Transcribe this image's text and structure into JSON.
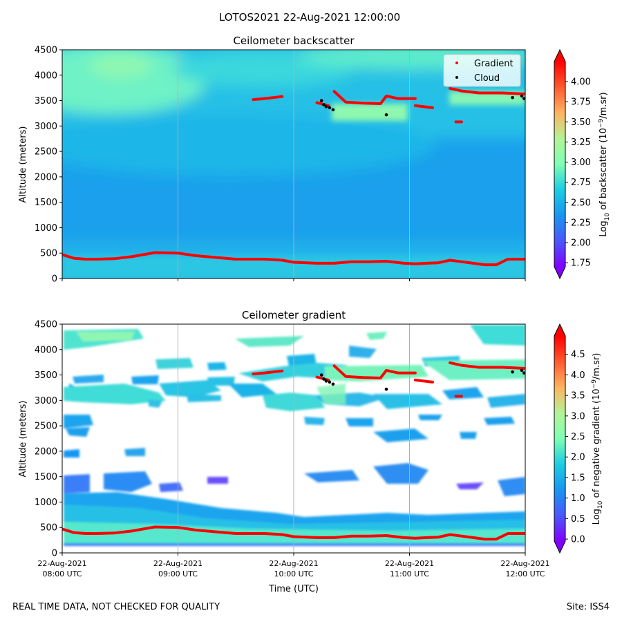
{
  "figure": {
    "suptitle": "LOTOS2021 22-Aug-2021 12:00:00",
    "footer_left": "REAL TIME DATA, NOT CHECKED FOR QUALITY",
    "footer_right": "Site: ISS4"
  },
  "chart_data": [
    {
      "type": "heatmap",
      "title": "Ceilometer backscatter",
      "xlabel": "",
      "ylabel": "Altitude (meters)",
      "xlim": [
        "22-Aug-2021 08:00 UTC",
        "22-Aug-2021 12:00 UTC"
      ],
      "ylim": [
        0,
        4500
      ],
      "yticks": [
        "0",
        "500",
        "1000",
        "1500",
        "2000",
        "2500",
        "3000",
        "3500",
        "4000",
        "4500"
      ],
      "xtick_times": [
        0,
        1,
        2,
        3,
        4
      ],
      "grid": "vertical lines at hourly ticks",
      "colormap": "rainbow",
      "colorbar": {
        "label_main": "Log",
        "label_sub": "10",
        "label_rest": " of backscatter (10",
        "label_exp": "−9",
        "label_end": "/m.sr)",
        "range": [
          1.7,
          4.25
        ],
        "ticks": [
          "1.75",
          "2.00",
          "2.25",
          "2.50",
          "2.75",
          "3.00",
          "3.25",
          "3.50",
          "3.75",
          "4.00"
        ],
        "tick_values": [
          1.75,
          2.0,
          2.25,
          2.5,
          2.75,
          3.0,
          3.25,
          3.5,
          3.75,
          4.0
        ],
        "extend": "both"
      },
      "legend": {
        "placement": "top-right",
        "entries": [
          {
            "name": "Gradient",
            "color": "#ff0000"
          },
          {
            "name": "Cloud",
            "color": "#000000"
          }
        ]
      },
      "series": [
        {
          "name": "Gradient",
          "color": "#ff0000",
          "segments": [
            {
              "x": [
                0.0,
                0.1,
                0.2,
                0.3,
                0.45,
                0.6,
                0.8,
                1.0,
                1.15,
                1.3,
                1.5,
                1.75,
                1.9,
                2.0,
                2.2,
                2.35,
                2.5,
                2.65,
                2.8,
                2.95,
                3.05,
                3.15,
                3.25,
                3.35,
                3.45,
                3.55,
                3.65,
                3.75,
                3.85,
                4.0
              ],
              "y": [
                470,
                400,
                380,
                380,
                390,
                430,
                510,
                500,
                450,
                420,
                380,
                380,
                360,
                320,
                300,
                300,
                330,
                330,
                340,
                300,
                290,
                300,
                310,
                360,
                330,
                300,
                270,
                270,
                380,
                380
              ]
            },
            {
              "x": [
                1.65,
                1.75,
                1.9
              ],
              "y": [
                3520,
                3540,
                3580
              ]
            },
            {
              "x": [
                2.2,
                2.3
              ],
              "y": [
                3460,
                3400
              ]
            },
            {
              "x": [
                2.35,
                2.45,
                2.6,
                2.75,
                2.8,
                2.9,
                3.05
              ],
              "y": [
                3680,
                3470,
                3450,
                3440,
                3590,
                3540,
                3540
              ]
            },
            {
              "x": [
                3.05,
                3.2
              ],
              "y": [
                3400,
                3360
              ]
            },
            {
              "x": [
                3.4,
                3.45
              ],
              "y": [
                3080,
                3080
              ]
            },
            {
              "x": [
                3.35,
                3.45,
                3.6,
                3.8,
                4.0
              ],
              "y": [
                3740,
                3690,
                3650,
                3650,
                3630
              ]
            }
          ]
        },
        {
          "name": "Cloud",
          "color": "#000000",
          "x": [
            2.24,
            2.26,
            2.28,
            2.31,
            2.34,
            2.8,
            3.89,
            3.97,
            3.99
          ],
          "y": [
            3500,
            3420,
            3380,
            3360,
            3320,
            3220,
            3560,
            3590,
            3540
          ]
        }
      ]
    },
    {
      "type": "heatmap",
      "title": "Ceilometer gradient",
      "xlabel": "Time (UTC)",
      "ylabel": "Altitude (meters)",
      "xlim": [
        "22-Aug-2021 08:00 UTC",
        "22-Aug-2021 12:00 UTC"
      ],
      "ylim": [
        0,
        4500
      ],
      "yticks": [
        "0",
        "500",
        "1000",
        "1500",
        "2000",
        "2500",
        "3000",
        "3500",
        "4000",
        "4500"
      ],
      "xticks": [
        {
          "date": "22-Aug-2021",
          "time": "08:00 UTC"
        },
        {
          "date": "22-Aug-2021",
          "time": "09:00 UTC"
        },
        {
          "date": "22-Aug-2021",
          "time": "10:00 UTC"
        },
        {
          "date": "22-Aug-2021",
          "time": "11:00 UTC"
        },
        {
          "date": "22-Aug-2021",
          "time": "12:00 UTC"
        }
      ],
      "grid": "vertical lines at hourly ticks",
      "colormap": "rainbow",
      "colorbar": {
        "label_main": "Log",
        "label_sub": "10",
        "label_rest": " of negative gradient (10",
        "label_exp": "−9",
        "label_end": "/m.sr)",
        "range": [
          -0.05,
          4.95
        ],
        "ticks": [
          "0.0",
          "0.5",
          "1.0",
          "1.5",
          "2.0",
          "2.5",
          "3.0",
          "3.5",
          "4.0",
          "4.5"
        ],
        "tick_values": [
          0.0,
          0.5,
          1.0,
          1.5,
          2.0,
          2.5,
          3.0,
          3.5,
          4.0,
          4.5
        ],
        "extend": "both"
      }
    }
  ]
}
